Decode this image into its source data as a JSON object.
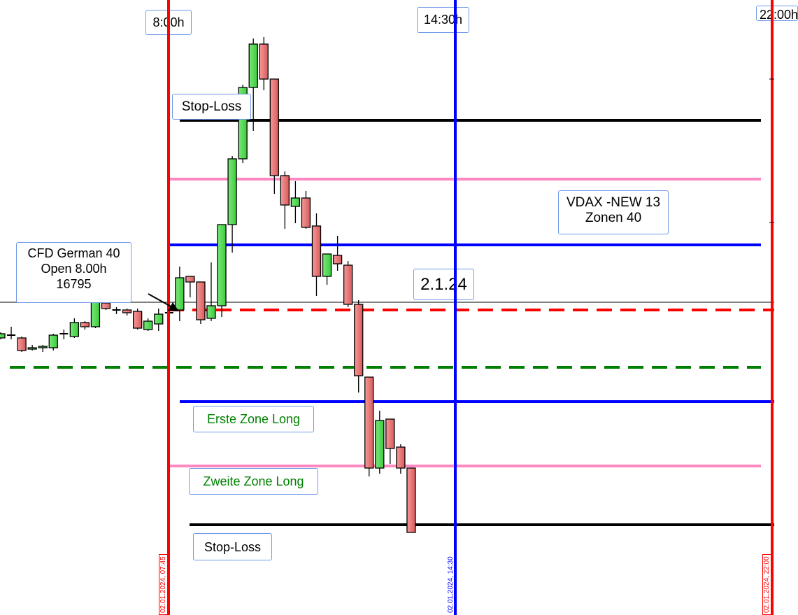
{
  "chart_data": {
    "type": "candlestick",
    "title": "",
    "instrument_label": [
      "CFD German 40",
      "Open 8.00h",
      "16795"
    ],
    "date_label": "2.1.24",
    "info_label": [
      "VDAX -NEW 13",
      "Zonen 40"
    ],
    "candle_fields": [
      "open",
      "high",
      "low",
      "close"
    ],
    "candles": [
      [
        16775,
        16779,
        16774,
        16778
      ],
      [
        16777,
        16783,
        16774,
        16777
      ],
      [
        16775,
        16776,
        16765,
        16766
      ],
      [
        16767,
        16770,
        16766,
        16768
      ],
      [
        16768,
        16770,
        16765,
        16769
      ],
      [
        16768,
        16778,
        16766,
        16777
      ],
      [
        16778,
        16781,
        16774,
        16778
      ],
      [
        16776,
        16789,
        16775,
        16786
      ],
      [
        16786,
        16787,
        16781,
        16783
      ],
      [
        16783,
        16807,
        16782,
        16805
      ],
      [
        16800,
        16802,
        16795,
        16796
      ],
      [
        16795,
        16797,
        16792,
        16795
      ],
      [
        16795,
        16796,
        16791,
        16793
      ],
      [
        16794,
        16796,
        16781,
        16782
      ],
      [
        16781,
        16789,
        16780,
        16787
      ],
      [
        16785,
        16796,
        16780,
        16792
      ],
      [
        16793,
        16794,
        16793,
        16793
      ],
      [
        16795,
        16826,
        16787,
        16818
      ],
      [
        16819,
        16819,
        16804,
        16815
      ],
      [
        16815,
        16815,
        16785,
        16788
      ],
      [
        16789,
        16829,
        16787,
        16798
      ],
      [
        16798,
        16856,
        16790,
        16856
      ],
      [
        16856,
        16905,
        16836,
        16903
      ],
      [
        16903,
        16956,
        16900,
        16954
      ],
      [
        16954,
        16989,
        16923,
        16985
      ],
      [
        16985,
        16990,
        16952,
        16960
      ],
      [
        16960,
        16960,
        16878,
        16891
      ],
      [
        16891,
        16894,
        16853,
        16870
      ],
      [
        16869,
        16887,
        16857,
        16875
      ],
      [
        16875,
        16880,
        16853,
        16854
      ],
      [
        16855,
        16864,
        16805,
        16819
      ],
      [
        16819,
        16835,
        16813,
        16835
      ],
      [
        16834,
        16848,
        16823,
        16828
      ],
      [
        16827,
        16830,
        16797,
        16799
      ],
      [
        16799,
        16802,
        16736,
        16748
      ],
      [
        16747,
        16747,
        16676,
        16682
      ],
      [
        16682,
        16723,
        16678,
        16716
      ],
      [
        16717,
        16717,
        16685,
        16696
      ],
      [
        16697,
        16699,
        16678,
        16682
      ],
      [
        16682,
        16682,
        16636,
        16636
      ]
    ],
    "colors": {
      "up": "#4fd34f",
      "down": "#e66a6a"
    },
    "levels": [
      {
        "name": "stop-loss-upper",
        "price": 16930.5,
        "color": "#000000",
        "style": "solid",
        "label": "Stop-Loss"
      },
      {
        "name": "pink-zone-upper",
        "price": 16888.5,
        "color": "#ff88c0",
        "style": "solid"
      },
      {
        "name": "blue-zone-upper",
        "price": 16841.5,
        "color": "#0000ff",
        "style": "solid"
      },
      {
        "name": "crosshair",
        "price": 16800.5,
        "color": "#000000",
        "style": "thin"
      },
      {
        "name": "open-level",
        "price": 16795,
        "color": "#ff0000",
        "style": "dashed"
      },
      {
        "name": "green-level",
        "price": 16754,
        "color": "#008000",
        "style": "dashed"
      },
      {
        "name": "blue-zone-lower",
        "price": 16729.5,
        "color": "#0000ff",
        "style": "solid",
        "label": "Erste Zone Long"
      },
      {
        "name": "pink-zone-lower",
        "price": 16683.5,
        "color": "#ff88c0",
        "style": "solid",
        "label": "Zweite Zone Long"
      },
      {
        "name": "stop-loss-lower",
        "price": 16641.5,
        "color": "#000000",
        "style": "solid",
        "label": "Stop-Loss"
      }
    ],
    "time_markers": [
      {
        "top_label": "8:00h",
        "bottom_label": "02.01.2024, 07:45",
        "color": "#ff0000"
      },
      {
        "top_label": "14:30h",
        "bottom_label": "02.01.2024, 14:30",
        "color": "#0000ff"
      },
      {
        "top_label": "22:00h",
        "bottom_label": "02.01.2024, 22:00",
        "color": "#ff0000"
      }
    ]
  }
}
